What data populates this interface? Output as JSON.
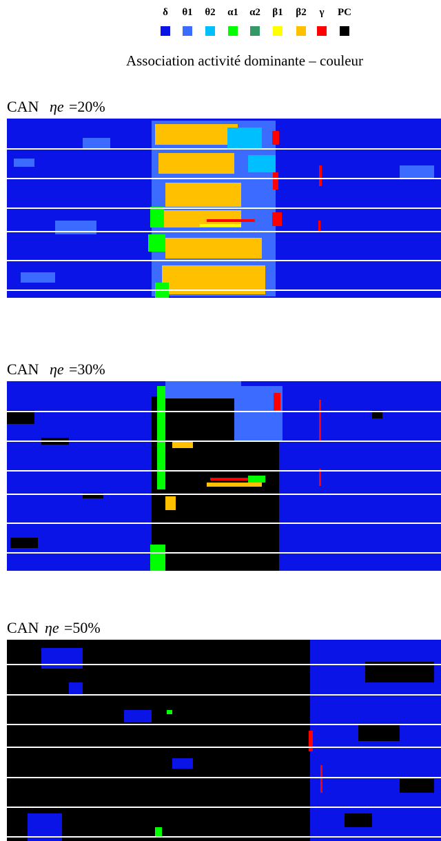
{
  "legend": {
    "items": [
      {
        "label": "δ",
        "color": "#0a14e6"
      },
      {
        "label": "θ1",
        "color": "#3c6cff"
      },
      {
        "label": "θ2",
        "color": "#00bfff"
      },
      {
        "label": "α1",
        "color": "#00ff00"
      },
      {
        "label": "α2",
        "color": "#339966"
      },
      {
        "label": "β1",
        "color": "#ffff00"
      },
      {
        "label": "β2",
        "color": "#ffc000"
      },
      {
        "label": "γ",
        "color": "#ff0000"
      },
      {
        "label": "PC",
        "color": "#000000"
      }
    ],
    "caption": "Association activité dominante – couleur"
  },
  "panels": [
    {
      "name": "CAN",
      "symbol": "ηe",
      "setting": "=20%"
    },
    {
      "name": "CAN",
      "symbol": "ηe",
      "setting": "=30%"
    },
    {
      "name": "CAN",
      "symbol": "ηe",
      "setting": "=50%"
    }
  ]
}
